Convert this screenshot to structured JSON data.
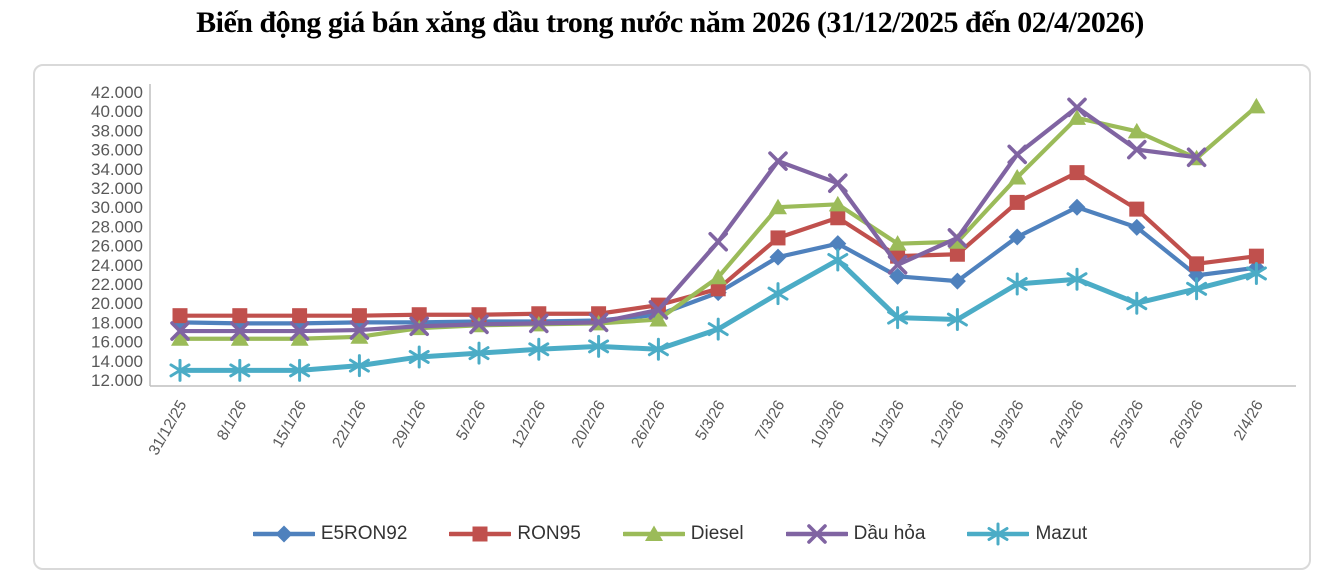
{
  "title": "Biến động giá bán xăng dầu trong nước năm 2026 (31/12/2025 đến 02/4/2026)",
  "chart_data": {
    "type": "line",
    "title": "Biến động giá bán xăng dầu trong nước năm 2026 (31/12/2025 đến 02/4/2026)",
    "xlabel": "",
    "ylabel": "",
    "grid": false,
    "legend_position": "bottom",
    "ylim": [
      12000,
      42000
    ],
    "ytick_step": 2000,
    "ytick_labels": [
      "12.000",
      "14.000",
      "16.000",
      "18.000",
      "20.000",
      "22.000",
      "24.000",
      "26.000",
      "28.000",
      "30.000",
      "32.000",
      "34.000",
      "36.000",
      "38.000",
      "40.000",
      "42.000"
    ],
    "categories": [
      "31/12/25",
      "8/1/26",
      "15/1/26",
      "22/1/26",
      "29/1/26",
      "5/2/26",
      "12/2/26",
      "20/2/26",
      "26/2/26",
      "5/3/26",
      "7/3/26",
      "10/3/26",
      "11/3/26",
      "12/3/26",
      "19/3/26",
      "24/3/26",
      "25/3/26",
      "26/3/26",
      "2/4/26"
    ],
    "series": [
      {
        "name": "E5RON92",
        "color": "#4F81BD",
        "marker": "diamond",
        "values": [
          18000,
          17900,
          17900,
          18000,
          18000,
          18100,
          18100,
          18200,
          18800,
          21100,
          24800,
          26200,
          22800,
          22300,
          26900,
          30000,
          27900,
          22900,
          23700
        ]
      },
      {
        "name": "RON95",
        "color": "#C0504D",
        "marker": "square",
        "values": [
          18700,
          18700,
          18700,
          18700,
          18800,
          18800,
          18900,
          18900,
          19800,
          21500,
          26800,
          28900,
          24900,
          25100,
          30500,
          33600,
          29800,
          24100,
          24900
        ]
      },
      {
        "name": "Diesel",
        "color": "#9BBB59",
        "marker": "triangle",
        "values": [
          16300,
          16300,
          16300,
          16500,
          17400,
          17700,
          17800,
          17900,
          18300,
          22700,
          30000,
          30300,
          26200,
          26400,
          33100,
          39300,
          37900,
          35100,
          40500
        ]
      },
      {
        "name": "Dầu hỏa",
        "color": "#8064A2",
        "marker": "x",
        "values": [
          17100,
          17100,
          17100,
          17200,
          17600,
          17800,
          17900,
          18000,
          19300,
          26400,
          34800,
          32500,
          24000,
          26800,
          35500,
          40400,
          36000,
          35200,
          null
        ]
      },
      {
        "name": "Mazut",
        "color": "#4BACC6",
        "marker": "asterisk",
        "values": [
          13000,
          13000,
          13000,
          13500,
          14400,
          14800,
          15200,
          15500,
          15200,
          17300,
          21000,
          24500,
          18500,
          18300,
          22000,
          22500,
          20000,
          21500,
          23100
        ]
      }
    ],
    "axis_text_color": "#595959",
    "axis_line_color": "#bfbfbf",
    "frame_border_color": "#d9d9d9"
  }
}
